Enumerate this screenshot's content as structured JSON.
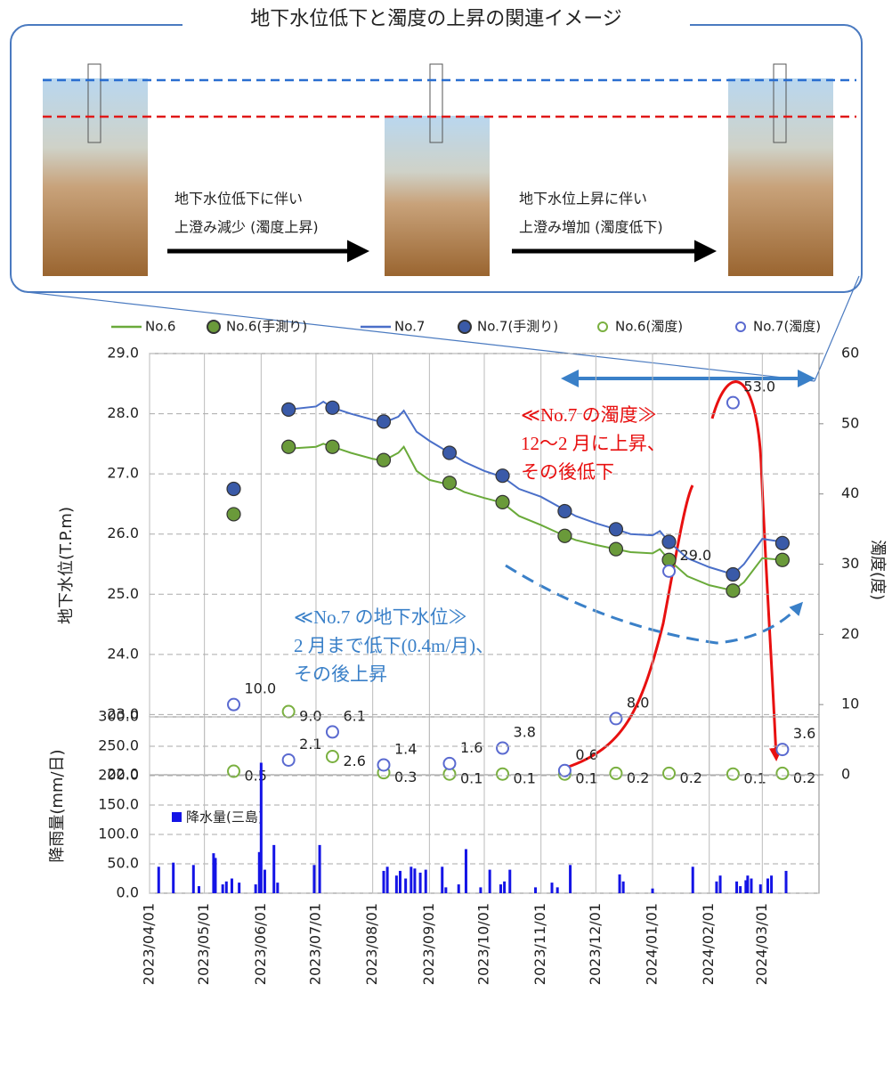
{
  "diagram": {
    "title": "地下水位低下と濁度の上昇の関連イメージ",
    "arrows": [
      {
        "lines": [
          "地下水位低下に伴い",
          "上澄み減少 (濁度上昇)"
        ]
      },
      {
        "lines": [
          "地下水位上昇に伴い",
          "上澄み増加 (濁度低下)"
        ]
      }
    ]
  },
  "chart_data": [
    {
      "type": "line",
      "ylabel": "地下水位(T.P.m)",
      "y2label": "濁度(度)",
      "xlim": [
        "2023/04/01",
        "2024/04/01"
      ],
      "ylim": [
        22,
        29
      ],
      "yticks": [
        {
          "value": 22,
          "label": "22.0"
        },
        {
          "value": 23,
          "label": "23.0"
        },
        {
          "value": 24,
          "label": "24.0"
        },
        {
          "value": 25,
          "label": "25.0"
        },
        {
          "value": 26,
          "label": "26.0"
        },
        {
          "value": 27,
          "label": "27.0"
        },
        {
          "value": 28,
          "label": "28.0"
        },
        {
          "value": 29,
          "label": "29.0"
        }
      ],
      "y2lim": [
        0,
        60
      ],
      "y2ticks": [
        0,
        10,
        20,
        30,
        40,
        50,
        60
      ],
      "grid": true,
      "legend": "top",
      "series": [
        {
          "name": "No.6",
          "kind": "line",
          "color": "#6aaa3a",
          "x": [
            "2023/06/16",
            "2023/07/01",
            "2023/07/05",
            "2023/07/10",
            "2023/07/20",
            "2023/08/01",
            "2023/08/07",
            "2023/08/15",
            "2023/08/18",
            "2023/08/25",
            "2023/09/01",
            "2023/09/12",
            "2023/09/20",
            "2023/10/01",
            "2023/10/11",
            "2023/10/20",
            "2023/11/01",
            "2023/11/14",
            "2023/11/20",
            "2023/12/01",
            "2023/12/12",
            "2023/12/20",
            "2024/01/01",
            "2024/01/05",
            "2024/01/10",
            "2024/01/20",
            "2024/02/01",
            "2024/02/14",
            "2024/02/20",
            "2024/03/01",
            "2024/03/12"
          ],
          "values": [
            27.42,
            27.45,
            27.5,
            27.45,
            27.35,
            27.25,
            27.22,
            27.35,
            27.45,
            27.05,
            26.9,
            26.82,
            26.7,
            26.6,
            26.52,
            26.3,
            26.15,
            25.97,
            25.9,
            25.82,
            25.75,
            25.7,
            25.68,
            25.75,
            25.57,
            25.3,
            25.15,
            25.06,
            25.2,
            25.6,
            25.57
          ]
        },
        {
          "name": "No.6(手測り)",
          "kind": "filled",
          "color": "#6a9a3a",
          "x": [
            "2023/05/17",
            "2023/06/16",
            "2023/07/10",
            "2023/08/07",
            "2023/09/12",
            "2023/10/11",
            "2023/11/14",
            "2023/12/12",
            "2024/01/10",
            "2024/02/14",
            "2024/03/12"
          ],
          "values": [
            26.33,
            27.45,
            27.45,
            27.23,
            26.85,
            26.53,
            25.97,
            25.75,
            25.57,
            25.06,
            25.57
          ]
        },
        {
          "name": "No.7",
          "kind": "line",
          "color": "#4a6fc8",
          "x": [
            "2023/06/16",
            "2023/07/01",
            "2023/07/05",
            "2023/07/10",
            "2023/07/20",
            "2023/08/01",
            "2023/08/07",
            "2023/08/15",
            "2023/08/18",
            "2023/08/25",
            "2023/09/01",
            "2023/09/12",
            "2023/09/20",
            "2023/10/01",
            "2023/10/11",
            "2023/10/20",
            "2023/11/01",
            "2023/11/14",
            "2023/11/20",
            "2023/12/01",
            "2023/12/12",
            "2023/12/20",
            "2024/01/01",
            "2024/01/05",
            "2024/01/10",
            "2024/01/20",
            "2024/02/01",
            "2024/02/14",
            "2024/02/20",
            "2024/03/01",
            "2024/03/12"
          ],
          "values": [
            28.07,
            28.12,
            28.2,
            28.1,
            28.0,
            27.9,
            27.85,
            27.95,
            28.05,
            27.7,
            27.55,
            27.35,
            27.2,
            27.05,
            26.95,
            26.75,
            26.62,
            26.4,
            26.3,
            26.18,
            26.08,
            26.0,
            25.98,
            26.05,
            25.87,
            25.6,
            25.45,
            25.33,
            25.5,
            25.92,
            25.87
          ]
        },
        {
          "name": "No.7(手測り)",
          "kind": "filled",
          "color": "#3a5aa8",
          "x": [
            "2023/05/17",
            "2023/06/16",
            "2023/07/10",
            "2023/08/07",
            "2023/09/12",
            "2023/10/11",
            "2023/11/14",
            "2023/12/12",
            "2024/01/10",
            "2024/02/14",
            "2024/03/12"
          ],
          "values": [
            26.75,
            28.07,
            28.1,
            27.87,
            27.35,
            26.97,
            26.38,
            26.08,
            25.87,
            25.33,
            25.85
          ]
        },
        {
          "name": "No.6(濁度)",
          "kind": "open",
          "axis": "y2",
          "color": "#7ab040",
          "x": [
            "2023/05/17",
            "2023/06/16",
            "2023/07/10",
            "2023/08/07",
            "2023/09/12",
            "2023/10/11",
            "2023/11/14",
            "2023/12/12",
            "2024/01/10",
            "2024/02/14",
            "2024/03/12"
          ],
          "values": [
            0.5,
            9,
            2.6,
            0.3,
            0.1,
            0.1,
            0.1,
            0.2,
            0.2,
            0.1,
            0.2
          ],
          "value_labels": [
            "0.5",
            "9.0",
            "2.6",
            "0.3",
            "0.1",
            "0.1",
            "0.1",
            "0.2",
            "0.2",
            "0.1",
            "0.2"
          ]
        },
        {
          "name": "No.7(濁度)",
          "kind": "open",
          "axis": "y2",
          "color": "#5a6ad0",
          "x": [
            "2023/05/17",
            "2023/06/16",
            "2023/07/10",
            "2023/08/07",
            "2023/09/12",
            "2023/10/11",
            "2023/11/14",
            "2023/12/12",
            "2024/01/10",
            "2024/02/14",
            "2024/03/12"
          ],
          "values": [
            10,
            2.1,
            6.1,
            1.4,
            1.6,
            3.8,
            0.6,
            8,
            29,
            53,
            3.6
          ],
          "value_labels": [
            "10.0",
            "2.1",
            "6.1",
            "1.4",
            "1.6",
            "3.8",
            "0.6",
            "8.0",
            "29.0",
            "53.0",
            "3.6"
          ]
        }
      ],
      "annotations": [
        {
          "color": "#e81010",
          "lines": [
            "≪No.7 の濁度≫",
            "12～2 月に上昇、",
            "その後低下"
          ]
        },
        {
          "color": "#3a80c8",
          "lines": [
            "≪No.7 の地下水位≫",
            "2 月まで低下(0.4m/月)、",
            "その後上昇"
          ]
        }
      ]
    },
    {
      "type": "bar",
      "ylabel": "降雨量(mm/日)",
      "xlim": [
        "2023/04/01",
        "2024/04/01"
      ],
      "xticks": [
        "2023/04/01",
        "2023/05/01",
        "2023/06/01",
        "2023/07/01",
        "2023/08/01",
        "2023/09/01",
        "2023/10/01",
        "2023/11/01",
        "2023/12/01",
        "2024/01/01",
        "2024/02/01",
        "2024/03/01"
      ],
      "ylim": [
        0,
        300
      ],
      "yticks": [
        {
          "value": 0,
          "label": "0.0"
        },
        {
          "value": 50,
          "label": "50.0"
        },
        {
          "value": 100,
          "label": "100.0"
        },
        {
          "value": 150,
          "label": "150.0"
        },
        {
          "value": 200,
          "label": "200.0"
        },
        {
          "value": 250,
          "label": "250.0"
        },
        {
          "value": 300,
          "label": "300.0"
        }
      ],
      "grid": true,
      "legend": "top-left",
      "series": [
        {
          "name": "降水量(三島)",
          "color": "#1414e6",
          "x": [
            "2023/04/06",
            "2023/04/14",
            "2023/04/25",
            "2023/04/28",
            "2023/05/06",
            "2023/05/07",
            "2023/05/11",
            "2023/05/13",
            "2023/05/16",
            "2023/05/20",
            "2023/05/29",
            "2023/05/31",
            "2023/06/01",
            "2023/06/03",
            "2023/06/08",
            "2023/06/10",
            "2023/06/30",
            "2023/07/03",
            "2023/08/07",
            "2023/08/09",
            "2023/08/14",
            "2023/08/16",
            "2023/08/19",
            "2023/08/22",
            "2023/08/24",
            "2023/08/27",
            "2023/08/30",
            "2023/09/08",
            "2023/09/10",
            "2023/09/17",
            "2023/09/21",
            "2023/09/29",
            "2023/10/04",
            "2023/10/10",
            "2023/10/12",
            "2023/10/15",
            "2023/10/29",
            "2023/11/07",
            "2023/11/10",
            "2023/11/17",
            "2023/12/14",
            "2023/12/16",
            "2024/01/01",
            "2024/01/23",
            "2024/02/05",
            "2024/02/07",
            "2024/02/16",
            "2024/02/18",
            "2024/02/21",
            "2024/02/22",
            "2024/02/24",
            "2024/02/29",
            "2024/03/04",
            "2024/03/06",
            "2024/03/14"
          ],
          "values": [
            45,
            52,
            48,
            12,
            68,
            60,
            15,
            20,
            25,
            18,
            15,
            70,
            222,
            40,
            82,
            18,
            48,
            82,
            38,
            45,
            30,
            38,
            25,
            45,
            42,
            35,
            40,
            45,
            10,
            15,
            75,
            10,
            40,
            15,
            20,
            40,
            10,
            18,
            10,
            48,
            32,
            20,
            8,
            45,
            20,
            30,
            20,
            12,
            22,
            30,
            25,
            15,
            25,
            30,
            38
          ]
        }
      ]
    }
  ]
}
